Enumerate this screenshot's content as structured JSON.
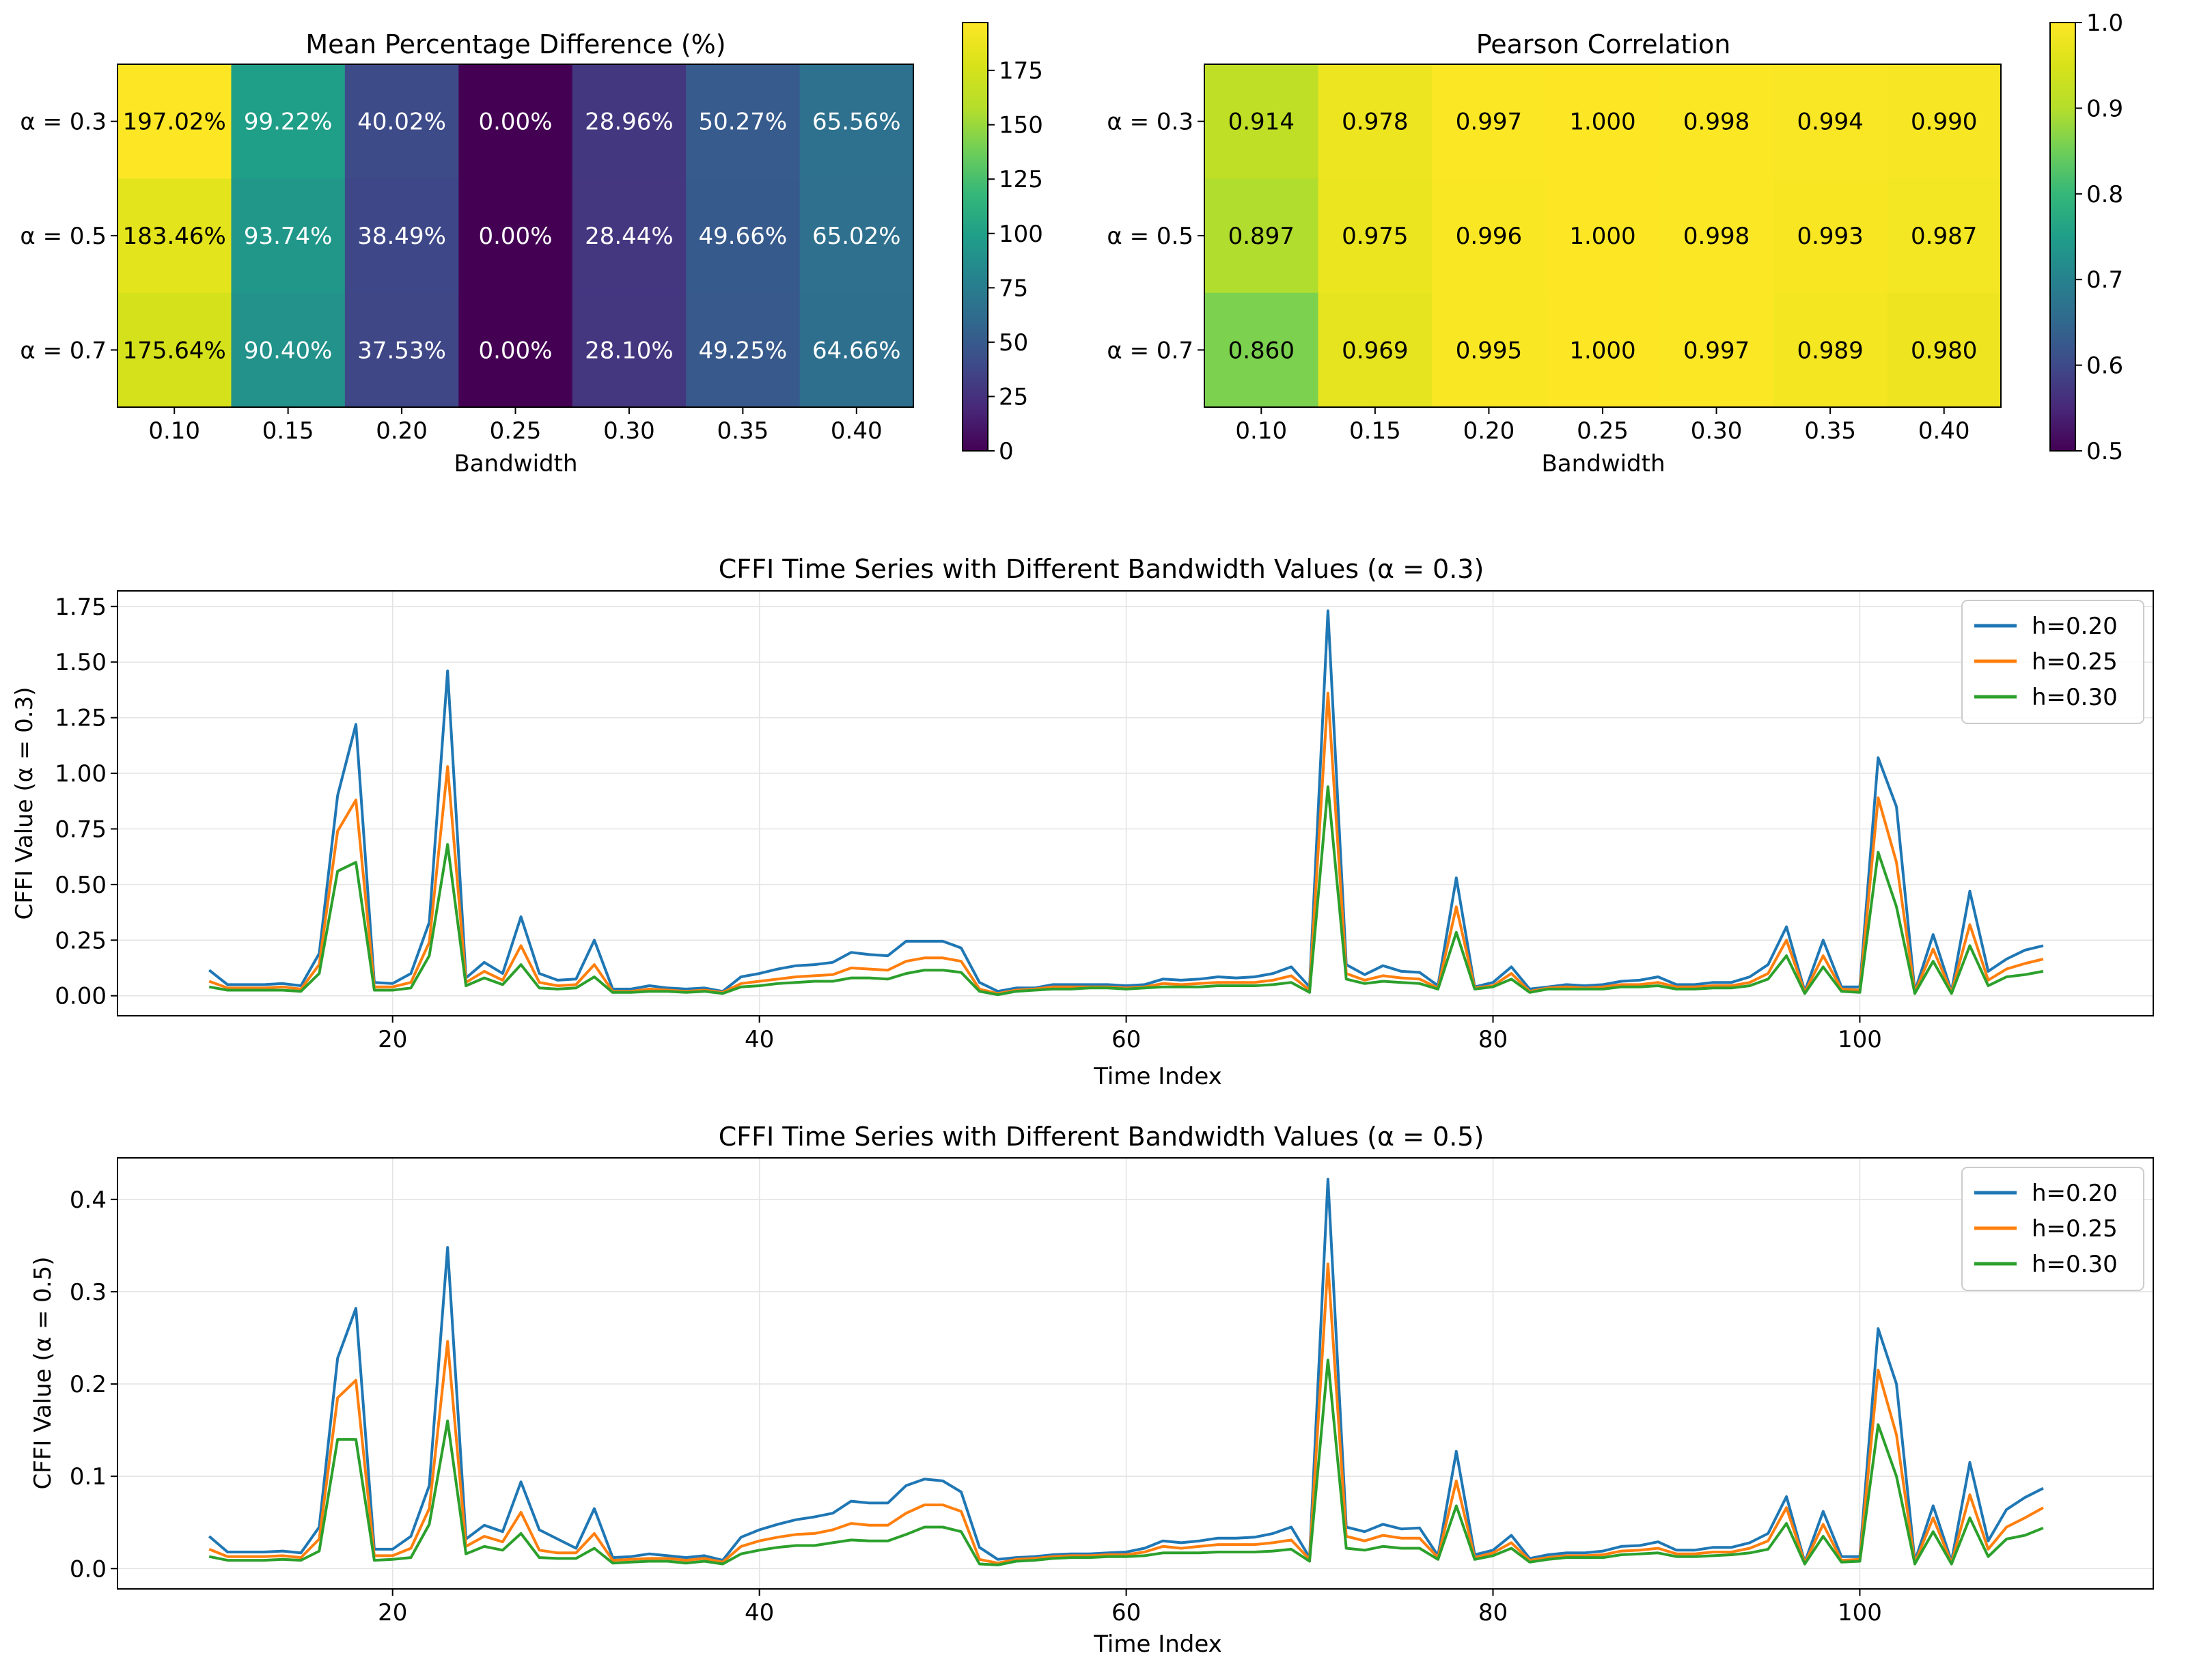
{
  "chart_data": [
    {
      "type": "heatmap",
      "title": "Mean Percentage Difference (%)",
      "xlabel": "Bandwidth",
      "ylabel": "",
      "x_tick_labels": [
        "0.10",
        "0.15",
        "0.20",
        "0.25",
        "0.30",
        "0.35",
        "0.40"
      ],
      "y_tick_labels": [
        "α = 0.3",
        "α = 0.5",
        "α = 0.7"
      ],
      "values": [
        [
          197.02,
          99.22,
          40.02,
          0.0,
          28.96,
          50.27,
          65.56
        ],
        [
          183.46,
          93.74,
          38.49,
          0.0,
          28.44,
          49.66,
          65.02
        ],
        [
          175.64,
          90.4,
          37.53,
          0.0,
          28.1,
          49.25,
          64.66
        ]
      ],
      "cell_labels": [
        [
          "197.02%",
          "99.22%",
          "40.02%",
          "0.00%",
          "28.96%",
          "50.27%",
          "65.56%"
        ],
        [
          "183.46%",
          "93.74%",
          "38.49%",
          "0.00%",
          "28.44%",
          "49.66%",
          "65.02%"
        ],
        [
          "175.64%",
          "90.40%",
          "37.53%",
          "0.00%",
          "28.10%",
          "49.25%",
          "64.66%"
        ]
      ],
      "colormap": "viridis",
      "clim": [
        0,
        197.02
      ],
      "colorbar_ticks": [
        0,
        25,
        50,
        75,
        100,
        125,
        150,
        175
      ],
      "colorbar_tick_labels": [
        "0",
        "25",
        "50",
        "75",
        "100",
        "125",
        "150",
        "175"
      ]
    },
    {
      "type": "heatmap",
      "title": "Pearson Correlation",
      "xlabel": "Bandwidth",
      "ylabel": "",
      "x_tick_labels": [
        "0.10",
        "0.15",
        "0.20",
        "0.25",
        "0.30",
        "0.35",
        "0.40"
      ],
      "y_tick_labels": [
        "α = 0.3",
        "α = 0.5",
        "α = 0.7"
      ],
      "values": [
        [
          0.914,
          0.978,
          0.997,
          1.0,
          0.998,
          0.994,
          0.99
        ],
        [
          0.897,
          0.975,
          0.996,
          1.0,
          0.998,
          0.993,
          0.987
        ],
        [
          0.86,
          0.969,
          0.995,
          1.0,
          0.997,
          0.989,
          0.98
        ]
      ],
      "cell_labels": [
        [
          "0.914",
          "0.978",
          "0.997",
          "1.000",
          "0.998",
          "0.994",
          "0.990"
        ],
        [
          "0.897",
          "0.975",
          "0.996",
          "1.000",
          "0.998",
          "0.993",
          "0.987"
        ],
        [
          "0.860",
          "0.969",
          "0.995",
          "1.000",
          "0.997",
          "0.989",
          "0.980"
        ]
      ],
      "colormap": "viridis",
      "clim": [
        0.5,
        1.0
      ],
      "colorbar_ticks": [
        0.5,
        0.6,
        0.7,
        0.8,
        0.9,
        1.0
      ],
      "colorbar_tick_labels": [
        "0.5",
        "0.6",
        "0.7",
        "0.8",
        "0.9",
        "1.0"
      ]
    },
    {
      "type": "line",
      "title": "CFFI Time Series with Different Bandwidth Values (α = 0.3)",
      "xlabel": "Time Index",
      "ylabel": "CFFI Value (α = 0.3)",
      "xlim": [
        5,
        116
      ],
      "ylim": [
        -0.09,
        1.82
      ],
      "xticks": [
        20,
        40,
        60,
        80,
        100
      ],
      "xtick_labels": [
        "20",
        "40",
        "60",
        "80",
        "100"
      ],
      "yticks": [
        0,
        0.25,
        0.5,
        0.75,
        1.0,
        1.25,
        1.5,
        1.75
      ],
      "ytick_labels": [
        "0.00",
        "0.25",
        "0.50",
        "0.75",
        "1.00",
        "1.25",
        "1.50",
        "1.75"
      ],
      "grid": true,
      "legend_position": "top-right",
      "x_start": 10,
      "series": [
        {
          "name": "h=0.20",
          "color": "#1f77b4",
          "values": [
            0.115,
            0.05,
            0.05,
            0.05,
            0.055,
            0.045,
            0.19,
            0.9,
            1.22,
            0.06,
            0.055,
            0.1,
            0.33,
            1.46,
            0.08,
            0.15,
            0.1,
            0.355,
            0.1,
            0.07,
            0.075,
            0.25,
            0.03,
            0.03,
            0.045,
            0.035,
            0.03,
            0.035,
            0.02,
            0.085,
            0.1,
            0.12,
            0.135,
            0.14,
            0.15,
            0.195,
            0.185,
            0.18,
            0.245,
            0.245,
            0.245,
            0.215,
            0.06,
            0.02,
            0.035,
            0.035,
            0.05,
            0.05,
            0.05,
            0.05,
            0.045,
            0.05,
            0.075,
            0.07,
            0.075,
            0.085,
            0.08,
            0.085,
            0.1,
            0.13,
            0.04,
            1.73,
            0.14,
            0.095,
            0.135,
            0.11,
            0.105,
            0.045,
            0.53,
            0.04,
            0.06,
            0.13,
            0.03,
            0.04,
            0.05,
            0.045,
            0.05,
            0.065,
            0.07,
            0.085,
            0.05,
            0.05,
            0.06,
            0.06,
            0.085,
            0.14,
            0.31,
            0.02,
            0.25,
            0.04,
            0.04,
            1.07,
            0.85,
            0.02,
            0.275,
            0.02,
            0.47,
            0.11,
            0.165,
            0.205,
            0.225
          ]
        },
        {
          "name": "h=0.25",
          "color": "#ff7f0e",
          "values": [
            0.065,
            0.035,
            0.035,
            0.035,
            0.04,
            0.03,
            0.14,
            0.74,
            0.88,
            0.04,
            0.04,
            0.06,
            0.24,
            1.03,
            0.06,
            0.11,
            0.07,
            0.225,
            0.06,
            0.045,
            0.05,
            0.14,
            0.02,
            0.02,
            0.03,
            0.025,
            0.02,
            0.025,
            0.015,
            0.055,
            0.065,
            0.075,
            0.085,
            0.09,
            0.095,
            0.125,
            0.12,
            0.115,
            0.155,
            0.17,
            0.17,
            0.155,
            0.03,
            0.01,
            0.025,
            0.03,
            0.04,
            0.04,
            0.04,
            0.04,
            0.035,
            0.04,
            0.055,
            0.05,
            0.055,
            0.06,
            0.06,
            0.06,
            0.07,
            0.09,
            0.025,
            1.36,
            0.1,
            0.07,
            0.09,
            0.08,
            0.075,
            0.035,
            0.4,
            0.035,
            0.045,
            0.1,
            0.02,
            0.035,
            0.04,
            0.035,
            0.04,
            0.05,
            0.05,
            0.06,
            0.04,
            0.04,
            0.045,
            0.045,
            0.06,
            0.1,
            0.25,
            0.015,
            0.18,
            0.03,
            0.025,
            0.89,
            0.6,
            0.015,
            0.21,
            0.015,
            0.32,
            0.07,
            0.12,
            0.145,
            0.165
          ]
        },
        {
          "name": "h=0.30",
          "color": "#2ca02c",
          "values": [
            0.04,
            0.025,
            0.025,
            0.025,
            0.025,
            0.02,
            0.1,
            0.56,
            0.6,
            0.025,
            0.025,
            0.035,
            0.18,
            0.68,
            0.045,
            0.08,
            0.05,
            0.14,
            0.035,
            0.03,
            0.035,
            0.085,
            0.015,
            0.015,
            0.02,
            0.02,
            0.015,
            0.02,
            0.01,
            0.04,
            0.045,
            0.055,
            0.06,
            0.065,
            0.065,
            0.08,
            0.08,
            0.075,
            0.1,
            0.115,
            0.115,
            0.105,
            0.02,
            0.005,
            0.02,
            0.025,
            0.03,
            0.03,
            0.035,
            0.035,
            0.03,
            0.035,
            0.04,
            0.04,
            0.04,
            0.045,
            0.045,
            0.045,
            0.05,
            0.06,
            0.015,
            0.94,
            0.075,
            0.055,
            0.065,
            0.06,
            0.055,
            0.03,
            0.285,
            0.03,
            0.04,
            0.075,
            0.015,
            0.03,
            0.03,
            0.03,
            0.03,
            0.04,
            0.04,
            0.045,
            0.03,
            0.03,
            0.035,
            0.035,
            0.045,
            0.075,
            0.18,
            0.01,
            0.13,
            0.02,
            0.015,
            0.645,
            0.4,
            0.01,
            0.155,
            0.01,
            0.225,
            0.045,
            0.085,
            0.095,
            0.11
          ]
        }
      ]
    },
    {
      "type": "line",
      "title": "CFFI Time Series with Different Bandwidth Values (α = 0.5)",
      "xlabel": "Time Index",
      "ylabel": "CFFI Value (α = 0.5)",
      "xlim": [
        5,
        116
      ],
      "ylim": [
        -0.022,
        0.445
      ],
      "xticks": [
        20,
        40,
        60,
        80,
        100
      ],
      "xtick_labels": [
        "20",
        "40",
        "60",
        "80",
        "100"
      ],
      "yticks": [
        0,
        0.1,
        0.2,
        0.3,
        0.4
      ],
      "ytick_labels": [
        "0.0",
        "0.1",
        "0.2",
        "0.3",
        "0.4"
      ],
      "grid": true,
      "legend_position": "top-right",
      "x_start": 10,
      "series": [
        {
          "name": "h=0.20",
          "color": "#1f77b4",
          "values": [
            0.035,
            0.018,
            0.018,
            0.018,
            0.019,
            0.017,
            0.045,
            0.228,
            0.282,
            0.021,
            0.021,
            0.035,
            0.09,
            0.348,
            0.032,
            0.047,
            0.04,
            0.094,
            0.042,
            0.032,
            0.022,
            0.065,
            0.012,
            0.013,
            0.016,
            0.014,
            0.012,
            0.014,
            0.009,
            0.034,
            0.042,
            0.048,
            0.053,
            0.056,
            0.06,
            0.073,
            0.071,
            0.071,
            0.09,
            0.097,
            0.095,
            0.083,
            0.023,
            0.01,
            0.012,
            0.013,
            0.015,
            0.016,
            0.016,
            0.017,
            0.018,
            0.022,
            0.03,
            0.028,
            0.03,
            0.033,
            0.033,
            0.034,
            0.038,
            0.045,
            0.012,
            0.422,
            0.045,
            0.04,
            0.048,
            0.043,
            0.044,
            0.014,
            0.127,
            0.015,
            0.02,
            0.036,
            0.011,
            0.015,
            0.017,
            0.017,
            0.019,
            0.024,
            0.025,
            0.029,
            0.02,
            0.02,
            0.023,
            0.023,
            0.028,
            0.038,
            0.078,
            0.007,
            0.062,
            0.013,
            0.013,
            0.26,
            0.2,
            0.008,
            0.068,
            0.008,
            0.115,
            0.03,
            0.064,
            0.077,
            0.087
          ]
        },
        {
          "name": "h=0.25",
          "color": "#ff7f0e",
          "values": [
            0.021,
            0.013,
            0.013,
            0.013,
            0.014,
            0.012,
            0.032,
            0.185,
            0.204,
            0.014,
            0.014,
            0.022,
            0.065,
            0.246,
            0.024,
            0.035,
            0.029,
            0.061,
            0.02,
            0.017,
            0.017,
            0.038,
            0.009,
            0.01,
            0.011,
            0.011,
            0.009,
            0.011,
            0.007,
            0.024,
            0.03,
            0.034,
            0.037,
            0.038,
            0.042,
            0.049,
            0.047,
            0.047,
            0.06,
            0.069,
            0.069,
            0.062,
            0.01,
            0.006,
            0.01,
            0.011,
            0.013,
            0.014,
            0.014,
            0.015,
            0.015,
            0.018,
            0.024,
            0.022,
            0.024,
            0.026,
            0.026,
            0.026,
            0.028,
            0.031,
            0.01,
            0.33,
            0.035,
            0.03,
            0.036,
            0.033,
            0.033,
            0.012,
            0.095,
            0.012,
            0.017,
            0.028,
            0.009,
            0.012,
            0.014,
            0.014,
            0.015,
            0.019,
            0.02,
            0.022,
            0.016,
            0.016,
            0.018,
            0.018,
            0.022,
            0.03,
            0.066,
            0.006,
            0.048,
            0.009,
            0.01,
            0.215,
            0.145,
            0.006,
            0.055,
            0.006,
            0.08,
            0.021,
            0.045,
            0.055,
            0.066
          ]
        },
        {
          "name": "h=0.30",
          "color": "#2ca02c",
          "values": [
            0.013,
            0.009,
            0.009,
            0.009,
            0.01,
            0.009,
            0.019,
            0.14,
            0.14,
            0.009,
            0.01,
            0.012,
            0.048,
            0.16,
            0.016,
            0.024,
            0.02,
            0.038,
            0.012,
            0.011,
            0.011,
            0.022,
            0.006,
            0.007,
            0.008,
            0.008,
            0.006,
            0.008,
            0.005,
            0.016,
            0.02,
            0.023,
            0.025,
            0.025,
            0.028,
            0.031,
            0.03,
            0.03,
            0.037,
            0.045,
            0.045,
            0.04,
            0.005,
            0.004,
            0.008,
            0.009,
            0.011,
            0.012,
            0.012,
            0.013,
            0.013,
            0.014,
            0.017,
            0.017,
            0.017,
            0.018,
            0.018,
            0.018,
            0.019,
            0.021,
            0.008,
            0.226,
            0.022,
            0.02,
            0.024,
            0.022,
            0.022,
            0.01,
            0.068,
            0.01,
            0.014,
            0.022,
            0.007,
            0.01,
            0.012,
            0.012,
            0.012,
            0.015,
            0.016,
            0.017,
            0.013,
            0.013,
            0.014,
            0.015,
            0.017,
            0.021,
            0.049,
            0.005,
            0.035,
            0.007,
            0.008,
            0.156,
            0.1,
            0.005,
            0.04,
            0.005,
            0.055,
            0.013,
            0.032,
            0.036,
            0.044
          ]
        }
      ]
    }
  ]
}
